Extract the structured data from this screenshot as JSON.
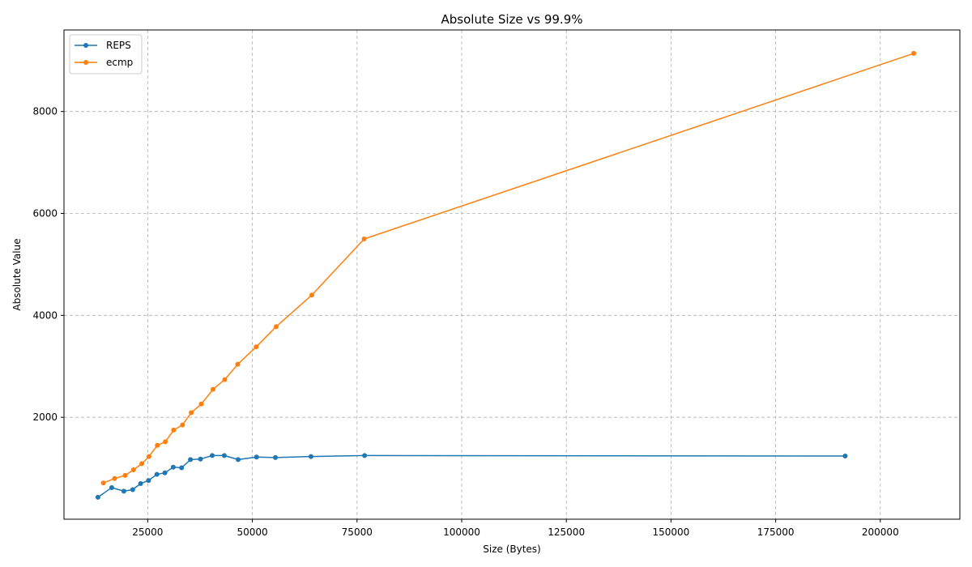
{
  "chart_data": {
    "type": "line",
    "title": "Absolute Size vs 99.9%",
    "xlabel": "Size (Bytes)",
    "ylabel": "Absolute Value",
    "xlim": [
      5000,
      219000
    ],
    "ylim": [
      0,
      9600
    ],
    "xticks": [
      25000,
      50000,
      75000,
      100000,
      125000,
      150000,
      175000,
      200000
    ],
    "yticks": [
      2000,
      4000,
      6000,
      8000
    ],
    "grid": true,
    "legend_position": "top-left",
    "series": [
      {
        "name": "REPS",
        "color": "#1f77b4",
        "x": [
          13100,
          16400,
          19300,
          21400,
          23300,
          25200,
          27200,
          29100,
          31100,
          33100,
          35200,
          37600,
          40400,
          43300,
          46600,
          51000,
          55500,
          64000,
          76800,
          191600
        ],
        "y": [
          430,
          620,
          550,
          580,
          700,
          760,
          880,
          910,
          1020,
          1010,
          1170,
          1180,
          1250,
          1250,
          1170,
          1220,
          1210,
          1230,
          1250,
          1240
        ]
      },
      {
        "name": "ecmp",
        "color": "#ff7f0e",
        "x": [
          14400,
          17100,
          19600,
          21600,
          23600,
          25300,
          27300,
          29200,
          31200,
          33300,
          35400,
          37800,
          40600,
          43400,
          46500,
          50900,
          55700,
          64200,
          76700,
          208000
        ],
        "y": [
          710,
          800,
          860,
          970,
          1090,
          1230,
          1450,
          1520,
          1750,
          1850,
          2090,
          2260,
          2550,
          2740,
          3040,
          3380,
          3780,
          4400,
          5500,
          9140
        ]
      }
    ]
  }
}
